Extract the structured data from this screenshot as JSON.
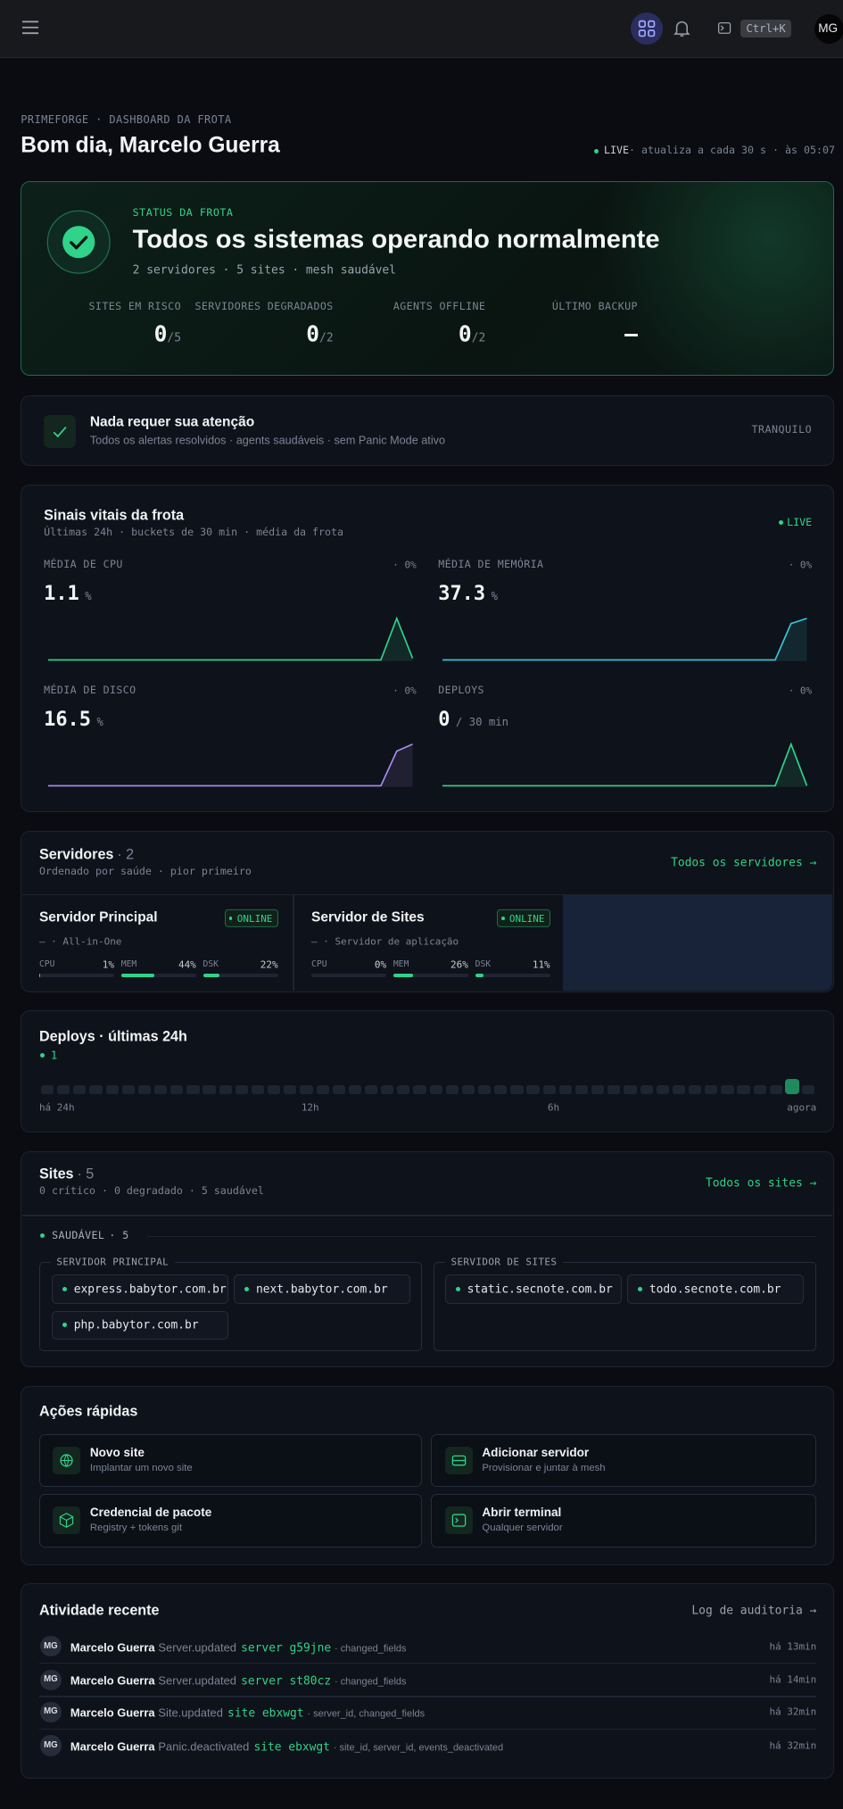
{
  "topbar": {
    "shortcut": "Ctrl+K",
    "avatar": "MG"
  },
  "header": {
    "eyebrow": "PRIMEFORGE · DASHBOARD DA FROTA",
    "title": "Bom dia, Marcelo Guerra",
    "live": "LIVE",
    "refresh": "· atualiza a cada 30 s  · às 05:07"
  },
  "status": {
    "eyebrow": "STATUS DA FROTA",
    "title": "Todos os sistemas operando normalmente",
    "summary": "2 servidores · 5 sites · mesh saudável",
    "stats": [
      {
        "label": "SITES EM RISCO",
        "value": "0",
        "total": "/5"
      },
      {
        "label": "SERVIDORES DEGRADADOS",
        "value": "0",
        "total": "/2"
      },
      {
        "label": "AGENTS OFFLINE",
        "value": "0",
        "total": "/2"
      },
      {
        "label": "ÚLTIMO BACKUP",
        "value": "—"
      }
    ]
  },
  "attention": {
    "title": "Nada requer sua atenção",
    "subtitle": "Todos os alertas resolvidos · agents saudáveis · sem Panic Mode ativo",
    "badge": "TRANQUILO"
  },
  "vitals": {
    "title": "Sinais vitais da frota",
    "subtitle": "Últimas 24h · buckets de 30 min · média da frota",
    "live": "LIVE",
    "metrics": [
      {
        "label": "MÉDIA DE CPU",
        "change": "· 0%",
        "value": "1.1",
        "unit": "%",
        "color": "#2fd38a",
        "series": [
          0.1,
          0.1,
          0.1,
          0.1,
          0.1,
          0.1,
          0.1,
          0.1,
          0.1,
          0.1,
          0.1,
          0.1,
          0.1,
          0.1,
          0.1,
          0.1,
          0.1,
          0.1,
          0.1,
          0.1,
          0.1,
          0.1,
          2.6,
          0.2
        ]
      },
      {
        "label": "MÉDIA DE MEMÓRIA",
        "change": "· 0%",
        "value": "37.3",
        "unit": "%",
        "color": "#38c6d9",
        "series": [
          36.9,
          36.9,
          36.9,
          36.9,
          36.9,
          36.9,
          36.9,
          36.9,
          36.9,
          36.9,
          36.9,
          36.9,
          36.9,
          36.9,
          36.9,
          36.9,
          36.9,
          36.9,
          36.9,
          36.9,
          36.9,
          36.9,
          37.6,
          37.7
        ]
      },
      {
        "label": "MÉDIA DE DISCO",
        "change": "· 0%",
        "value": "16.5",
        "unit": "%",
        "color": "#a98bf0",
        "series": [
          16.4,
          16.4,
          16.4,
          16.4,
          16.4,
          16.4,
          16.4,
          16.4,
          16.4,
          16.4,
          16.4,
          16.4,
          16.4,
          16.4,
          16.4,
          16.4,
          16.4,
          16.4,
          16.4,
          16.4,
          16.4,
          16.4,
          16.9,
          17.0
        ]
      },
      {
        "label": "DEPLOYS",
        "change": "· 0%",
        "value": "0",
        "unit": "/ 30 min",
        "color": "#2fd38a",
        "series": [
          0,
          0,
          0,
          0,
          0,
          0,
          0,
          0,
          0,
          0,
          0,
          0,
          0,
          0,
          0,
          0,
          0,
          0,
          0,
          0,
          0,
          0,
          1,
          0
        ]
      }
    ]
  },
  "servers": {
    "title": "Servidores",
    "count": "· 2",
    "subtitle": "Ordenado por saúde · pior primeiro",
    "link": "Todos os servidores →",
    "items": [
      {
        "name": "Servidor Principal",
        "status": "ONLINE",
        "role": "— · All-in-One",
        "metrics": [
          {
            "label": "CPU",
            "value": 1,
            "value_label": "1%"
          },
          {
            "label": "MEM",
            "value": 44,
            "value_label": "44%"
          },
          {
            "label": "DSK",
            "value": 22,
            "value_label": "22%"
          }
        ]
      },
      {
        "name": "Servidor de Sites",
        "status": "ONLINE",
        "role": "— · Servidor de aplicação",
        "metrics": [
          {
            "label": "CPU",
            "value": 0,
            "value_label": "0%"
          },
          {
            "label": "MEM",
            "value": 26,
            "value_label": "26%"
          },
          {
            "label": "DSK",
            "value": 11,
            "value_label": "11%"
          }
        ]
      }
    ]
  },
  "deploys": {
    "title": "Deploys · últimas 24h",
    "total": "1",
    "buckets": [
      0,
      0,
      0,
      0,
      0,
      0,
      0,
      0,
      0,
      0,
      0,
      0,
      0,
      0,
      0,
      0,
      0,
      0,
      0,
      0,
      0,
      0,
      0,
      0,
      0,
      0,
      0,
      0,
      0,
      0,
      0,
      0,
      0,
      0,
      0,
      0,
      0,
      0,
      0,
      0,
      0,
      0,
      0,
      0,
      0,
      0,
      1,
      0
    ],
    "axis": [
      "há 24h",
      "12h",
      "6h",
      "agora"
    ]
  },
  "sites": {
    "title": "Sites",
    "count": "· 5",
    "subtitle": "0 crítico · 0 degradado · 5 saudável",
    "link": "Todos os sites →",
    "group": "SAUDÁVEL",
    "group_count": "· 5",
    "servers": [
      {
        "name": "SERVIDOR PRINCIPAL",
        "sites": [
          "express.babytor.com.br",
          "next.babytor.com.br",
          "php.babytor.com.br"
        ]
      },
      {
        "name": "SERVIDOR DE SITES",
        "sites": [
          "static.secnote.com.br",
          "todo.secnote.com.br"
        ]
      }
    ]
  },
  "actions": {
    "title": "Ações rápidas",
    "items": [
      {
        "title": "Novo site",
        "subtitle": "Implantar um novo site"
      },
      {
        "title": "Adicionar servidor",
        "subtitle": "Provisionar e juntar à mesh"
      },
      {
        "title": "Credencial de pacote",
        "subtitle": "Registry + tokens git"
      },
      {
        "title": "Abrir terminal",
        "subtitle": "Qualquer servidor"
      }
    ]
  },
  "activity": {
    "title": "Atividade recente",
    "link": "Log de auditoria →",
    "items": [
      {
        "avatar": "MG",
        "actor": "Marcelo Guerra",
        "action": "Server.updated",
        "target": "server g59jne",
        "detail": "· changed_fields",
        "time": "há 13min"
      },
      {
        "avatar": "MG",
        "actor": "Marcelo Guerra",
        "action": "Server.updated",
        "target": "server st80cz",
        "detail": "· changed_fields",
        "time": "há 14min"
      },
      {
        "avatar": "MG",
        "actor": "Marcelo Guerra",
        "action": "Site.updated",
        "target": "site ebxwgt",
        "detail": "· server_id, changed_fields",
        "time": "há 32min"
      },
      {
        "avatar": "MG",
        "actor": "Marcelo Guerra",
        "action": "Panic.deactivated",
        "target": "site ebxwgt",
        "detail": "· site_id, server_id, events_deactivated",
        "time": "há 32min"
      }
    ]
  }
}
